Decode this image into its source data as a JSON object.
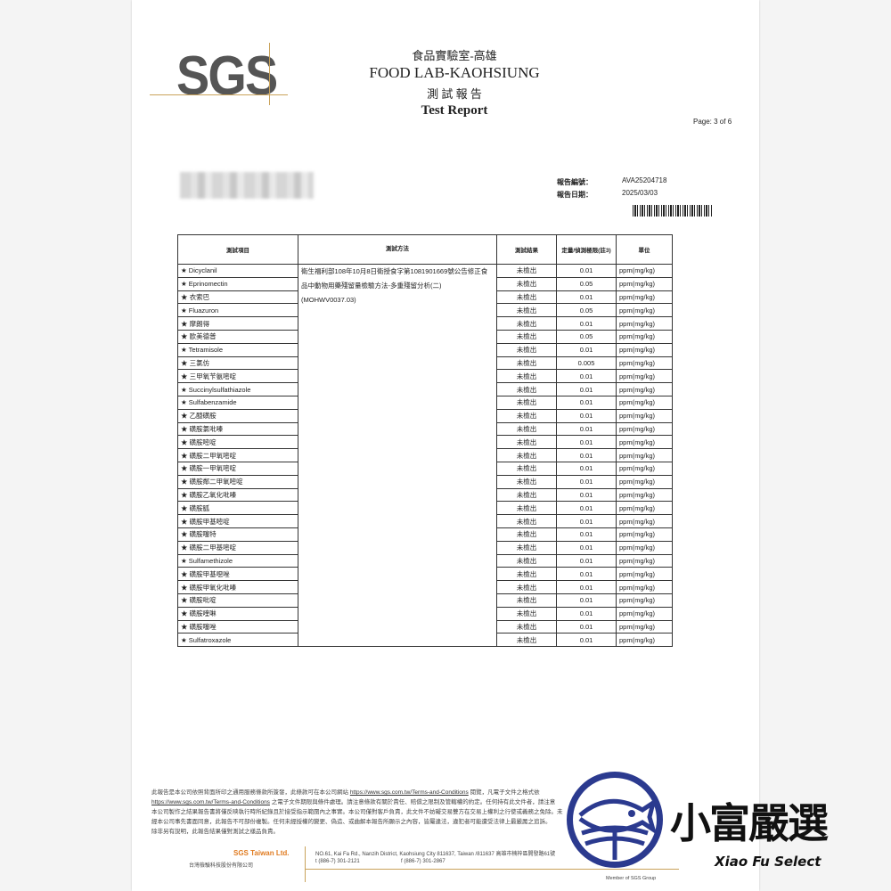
{
  "header": {
    "logo": "SGS",
    "lab_zh": "食品實驗室-高雄",
    "lab_en": "FOOD LAB-KAOHSIUNG",
    "title_zh": "測 試 報 告",
    "title_en": "Test Report",
    "page": "Page: 3 of 6"
  },
  "meta": {
    "report_no_label": "報告編號：",
    "report_no": "AVA25204718",
    "date_label": "報告日期：",
    "date": "2025/03/03"
  },
  "table": {
    "headers": [
      "測試項目",
      "測試方法",
      "測試結果",
      "定量/偵測極限(註3)",
      "單位"
    ],
    "method": "衛生福利部108年10月8日衛授食字第1081901669號公告修正食品中動物用藥殘留量檢驗方法-多重殘留分析(二)(MOHWV0037.03)",
    "rows": [
      [
        "★ Dicyclanil",
        "未檢出",
        "0.01",
        "ppm(mg/kg)"
      ],
      [
        "★ Eprinomectin",
        "未檢出",
        "0.05",
        "ppm(mg/kg)"
      ],
      [
        "★ 衣索巴",
        "未檢出",
        "0.01",
        "ppm(mg/kg)"
      ],
      [
        "★ Fluazuron",
        "未檢出",
        "0.05",
        "ppm(mg/kg)"
      ],
      [
        "★ 摩朗得",
        "未檢出",
        "0.01",
        "ppm(mg/kg)"
      ],
      [
        "★ 歐美德普",
        "未檢出",
        "0.05",
        "ppm(mg/kg)"
      ],
      [
        "★ Tetramisole",
        "未檢出",
        "0.01",
        "ppm(mg/kg)"
      ],
      [
        "★ 三氯仿",
        "未檢出",
        "0.005",
        "ppm(mg/kg)"
      ],
      [
        "★ 三甲氧苄氨嘧啶",
        "未檢出",
        "0.01",
        "ppm(mg/kg)"
      ],
      [
        "★ Succinylsulfathiazole",
        "未檢出",
        "0.01",
        "ppm(mg/kg)"
      ],
      [
        "★ Sulfabenzamide",
        "未檢出",
        "0.01",
        "ppm(mg/kg)"
      ],
      [
        "★ 乙醯磺胺",
        "未檢出",
        "0.01",
        "ppm(mg/kg)"
      ],
      [
        "★ 磺胺氯吡嗪",
        "未檢出",
        "0.01",
        "ppm(mg/kg)"
      ],
      [
        "★ 磺胺嘧啶",
        "未檢出",
        "0.01",
        "ppm(mg/kg)"
      ],
      [
        "★ 磺胺二甲氧嘧啶",
        "未檢出",
        "0.01",
        "ppm(mg/kg)"
      ],
      [
        "★ 磺胺一甲氧嘧啶",
        "未檢出",
        "0.01",
        "ppm(mg/kg)"
      ],
      [
        "★ 磺胺鄰二甲氧嘧啶",
        "未檢出",
        "0.01",
        "ppm(mg/kg)"
      ],
      [
        "★ 磺胺乙氧化吡嗪",
        "未檢出",
        "0.01",
        "ppm(mg/kg)"
      ],
      [
        "★ 磺胺胍",
        "未檢出",
        "0.01",
        "ppm(mg/kg)"
      ],
      [
        "★ 磺胺甲基嘧啶",
        "未檢出",
        "0.01",
        "ppm(mg/kg)"
      ],
      [
        "★ 磺胺噻特",
        "未檢出",
        "0.01",
        "ppm(mg/kg)"
      ],
      [
        "★ 磺胺二甲基嘧啶",
        "未檢出",
        "0.01",
        "ppm(mg/kg)"
      ],
      [
        "★ Sulfamethizole",
        "未檢出",
        "0.01",
        "ppm(mg/kg)"
      ],
      [
        "★ 磺胺甲基噁唑",
        "未檢出",
        "0.01",
        "ppm(mg/kg)"
      ],
      [
        "★ 磺胺甲氧化吡嗪",
        "未檢出",
        "0.01",
        "ppm(mg/kg)"
      ],
      [
        "★ 磺胺吡啶",
        "未檢出",
        "0.01",
        "ppm(mg/kg)"
      ],
      [
        "★ 磺胺喹啉",
        "未檢出",
        "0.01",
        "ppm(mg/kg)"
      ],
      [
        "★ 磺胺噻唑",
        "未檢出",
        "0.01",
        "ppm(mg/kg)"
      ],
      [
        "★ Sulfatroxazole",
        "未檢出",
        "0.01",
        "ppm(mg/kg)"
      ]
    ]
  },
  "terms": {
    "line1a": "此報告是本公司依照背面所印之通用服務條款所簽發，此條款可在本公司網站",
    "link": "https://www.sgs.com.tw/Terms-and-Conditions",
    "line1b": "閱覽，凡電子文件之格式依",
    "line2b": "之電子文件期限與條件處理。請注意條款有關於責任、賠償之限制及管轄權的約定。任何持有此文件者，請注意",
    "line3": "本公司製作之結果報告書將僅反映執行時所紀錄且於接受指示範圍內之事實。本公司僅對客戶負責，此文件不妨礙交易雙方在交易上權利之行使或義務之免除。未",
    "line4": "經本公司事先書面同意，此報告不可部份複製。任何未經授權的變更、偽造、或曲解本報告所顯示之內容，皆屬違法，違犯者可能遭受法律上最嚴厲之追訴。",
    "line5": "除非另有說明，此報告結果僅對測試之樣品負責。"
  },
  "footer": {
    "company_en": "SGS Taiwan Ltd.",
    "company_zh": "台灣檢驗科技股份有限公司",
    "address": "NO.61, Kai Fa Rd., Nanzih District, Kaohsiung City 811637, Taiwan /811637 高雄市楠梓區開發路61號",
    "tel": "t (886-7) 301-2121",
    "fax": "f (886-7) 301-2867",
    "member": "Member of SGS Group"
  },
  "watermark": {
    "brand_zh": "小富嚴選",
    "brand_en": "Xiao Fu Select",
    "color": "#2b3a8f"
  }
}
